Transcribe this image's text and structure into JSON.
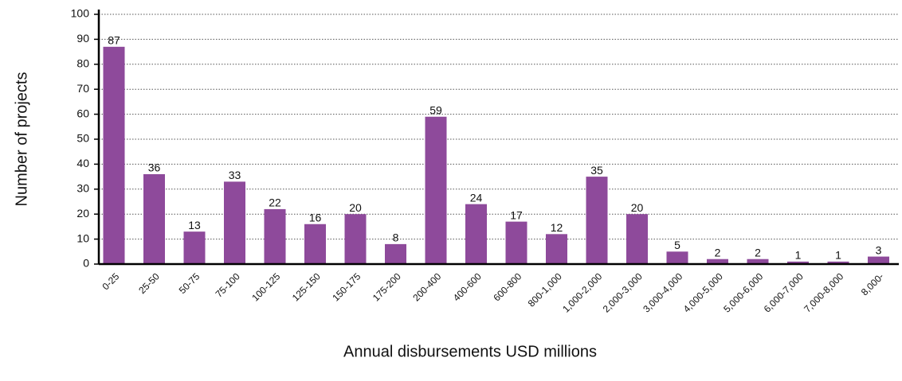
{
  "chart_data": {
    "type": "bar",
    "x_label": "Annual disbursements USD millions",
    "y_label": "Number of projects",
    "categories": [
      "0-25",
      "25-50",
      "50-75",
      "75-100",
      "100-125",
      "125-150",
      "150-175",
      "175-200",
      "200-400",
      "400-600",
      "600-800",
      "800-1,000",
      "1,000-2,000",
      "2,000-3,000",
      "3,000-4,000",
      "4,000-5,000",
      "5,000-6,000",
      "6,000-7,000",
      "7,000-8,000",
      "8,000-"
    ],
    "values": [
      87,
      36,
      13,
      33,
      22,
      16,
      20,
      8,
      59,
      24,
      17,
      12,
      35,
      20,
      5,
      2,
      2,
      1,
      1,
      3
    ],
    "color": "#8e4a9b",
    "ylim": [
      0,
      100
    ],
    "yticks": [
      0,
      10,
      20,
      30,
      40,
      50,
      60,
      70,
      80,
      90,
      100
    ],
    "grid": true
  }
}
